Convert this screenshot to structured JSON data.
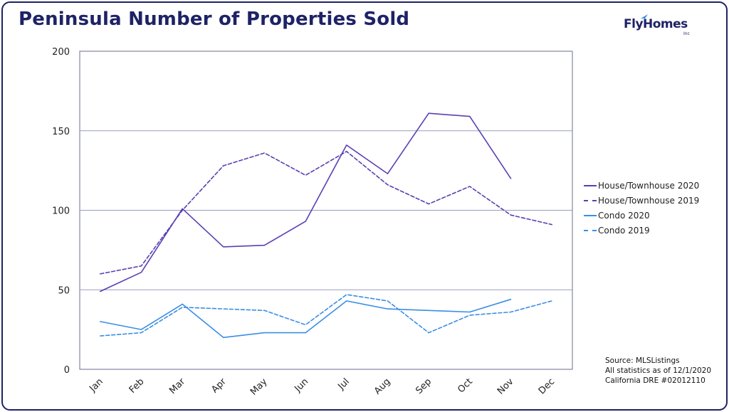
{
  "title": "Peninsula Number of Properties Sold",
  "logo": {
    "text": "FlyHomes",
    "suffix": "Inc"
  },
  "source_lines": [
    "Source: MLSListings",
    "All statistics as of 12/1/2020",
    "California DRE #02012110"
  ],
  "colors": {
    "house": "#5b3fb2",
    "condo": "#3a8ee6",
    "title": "#1e2266",
    "grid": "#9a9dc0"
  },
  "chart_data": {
    "type": "line",
    "title": "Peninsula Number of Properties Sold",
    "xlabel": "",
    "ylabel": "",
    "ylim": [
      0,
      200
    ],
    "yticks": [
      0,
      50,
      100,
      150,
      200
    ],
    "grid": true,
    "legend_position": "right",
    "categories": [
      "Jan",
      "Feb",
      "Mar",
      "Apr",
      "May",
      "Jun",
      "Jul",
      "Aug",
      "Sep",
      "Oct",
      "Nov",
      "Dec"
    ],
    "series": [
      {
        "name": "House/Townhouse 2020",
        "color": "#5b3fb2",
        "dash": "solid",
        "values": [
          49,
          61,
          101,
          77,
          78,
          93,
          141,
          123,
          161,
          159,
          120,
          null
        ]
      },
      {
        "name": "House/Townhouse 2019",
        "color": "#5b3fb2",
        "dash": "dashed",
        "values": [
          60,
          65,
          100,
          128,
          136,
          122,
          137,
          116,
          104,
          115,
          97,
          91
        ]
      },
      {
        "name": "Condo 2020",
        "color": "#3a8ee6",
        "dash": "solid",
        "values": [
          30,
          25,
          41,
          20,
          23,
          23,
          43,
          38,
          37,
          36,
          44,
          null
        ]
      },
      {
        "name": "Condo 2019",
        "color": "#3a8ee6",
        "dash": "dashed",
        "values": [
          21,
          23,
          39,
          38,
          37,
          28,
          47,
          43,
          23,
          34,
          36,
          43
        ]
      }
    ]
  }
}
